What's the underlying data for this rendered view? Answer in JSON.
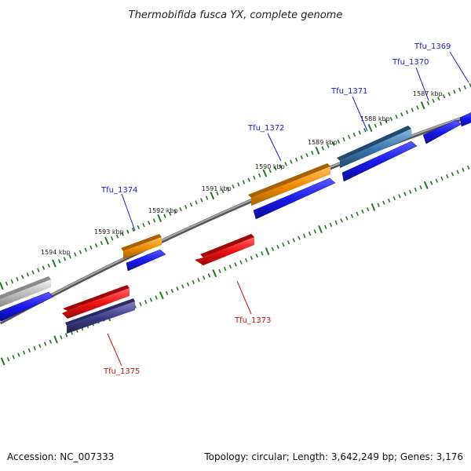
{
  "title": "Thermobifida fusca YX, complete genome",
  "footer": {
    "accession": "Accession: NC_007333",
    "topology": "Topology: circular; Length: 3,642,249 bp; Genes: 3,176"
  },
  "colors": {
    "forward_label": "#1a1acc",
    "reverse_label": "#cc1111",
    "tick": "#1f7a1f",
    "backbone": "#7a7a7a",
    "cds_blue": "#1a1aee",
    "red_gene": "#ee1111",
    "orange_gene": "#ee8c00",
    "steelblue_gene": "#3a78b0",
    "purple_gene": "#3c3c88",
    "grey_gene": "#b8b8b8"
  },
  "scale": {
    "unit": "kbp",
    "labels": [
      "1594 kbp",
      "1593 kbp",
      "1592 kbp",
      "1591 kbp",
      "1590 kbp",
      "1589 kbp",
      "1588 kbp",
      "1587 kbp"
    ]
  },
  "genes": [
    {
      "id": "Tfu_1369",
      "strand": "forward"
    },
    {
      "id": "Tfu_1370",
      "strand": "forward"
    },
    {
      "id": "Tfu_1371",
      "strand": "forward"
    },
    {
      "id": "Tfu_1372",
      "strand": "forward"
    },
    {
      "id": "Tfu_1373",
      "strand": "reverse"
    },
    {
      "id": "Tfu_1374",
      "strand": "forward"
    },
    {
      "id": "Tfu_1375",
      "strand": "reverse"
    }
  ]
}
